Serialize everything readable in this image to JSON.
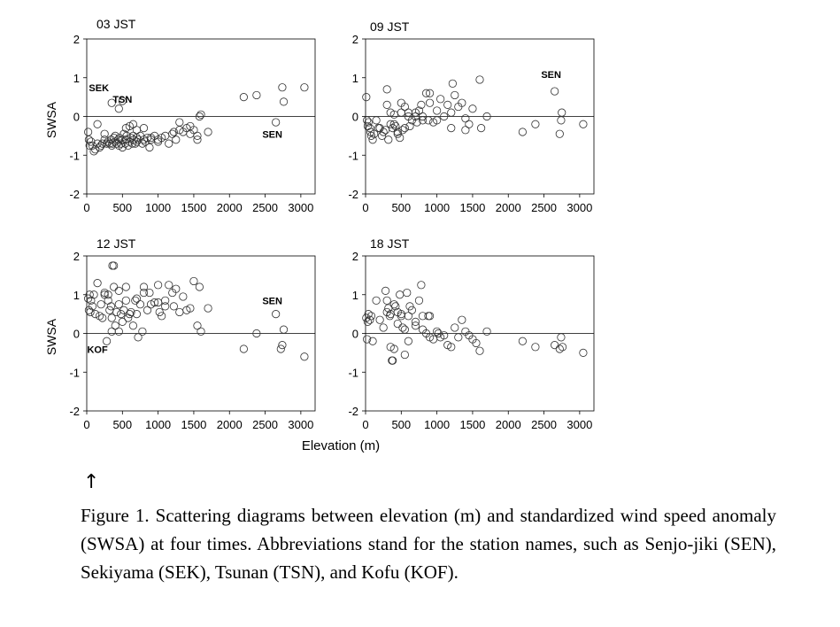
{
  "figure": {
    "arrow": "↑",
    "caption": "Figure 1. Scattering diagrams between elevation (m) and standardized wind speed anomaly (SWSA) at four times. Abbreviations stand for the station names, such as Senjo-jiki (SEN), Sekiyama (SEK), Tsunan (TSN), and Kofu (KOF).",
    "xlabel": "Elevation (m)"
  },
  "chart_data": [
    {
      "type": "scatter",
      "title": "03  JST",
      "ylabel": "SWSA",
      "xlabel": "",
      "xlim": [
        0,
        3200
      ],
      "ylim": [
        -2,
        2
      ],
      "xticks": [
        "0",
        "500",
        "1000",
        "1500",
        "2000",
        "2500",
        "3000"
      ],
      "yticks": [
        "2",
        "1",
        "0",
        "-1",
        "-2"
      ],
      "annotations": [
        {
          "text": "SEK",
          "x": 170,
          "y": 0.65
        },
        {
          "text": "TSN",
          "x": 500,
          "y": 0.35
        },
        {
          "text": "SEN",
          "x": 2600,
          "y": -0.55
        }
      ],
      "x": [
        20,
        30,
        40,
        60,
        80,
        100,
        120,
        150,
        180,
        200,
        220,
        250,
        280,
        300,
        320,
        340,
        350,
        360,
        380,
        400,
        400,
        420,
        440,
        450,
        460,
        480,
        500,
        500,
        520,
        540,
        550,
        560,
        580,
        600,
        620,
        640,
        650,
        660,
        680,
        700,
        700,
        720,
        750,
        780,
        800,
        820,
        850,
        880,
        900,
        950,
        1000,
        1050,
        1100,
        1150,
        1200,
        1220,
        1250,
        1300,
        1350,
        1400,
        1450,
        1500,
        1550,
        1580,
        1600,
        1700,
        2200,
        2380,
        2650,
        2740,
        2760,
        3050,
        350,
        450,
        500,
        150,
        250,
        550,
        600,
        650,
        700,
        800,
        900,
        1000,
        1300,
        1450,
        1550
      ],
      "y": [
        -0.4,
        -0.6,
        -0.75,
        -0.65,
        -0.75,
        -0.9,
        -0.85,
        -0.7,
        -0.8,
        -0.75,
        -0.7,
        -0.6,
        -0.7,
        -0.65,
        -0.7,
        -0.6,
        -0.75,
        -0.7,
        -0.55,
        -0.65,
        -0.5,
        -0.7,
        -0.6,
        -0.75,
        -0.55,
        -0.7,
        -0.8,
        -0.6,
        -0.45,
        -0.7,
        -0.6,
        -0.5,
        -0.75,
        -0.65,
        -0.55,
        -0.7,
        -0.5,
        -0.6,
        -0.7,
        -0.55,
        -0.65,
        -0.6,
        -0.5,
        -0.7,
        -0.6,
        -0.65,
        -0.55,
        -0.8,
        -0.6,
        -0.5,
        -0.6,
        -0.55,
        -0.5,
        -0.7,
        -0.45,
        -0.4,
        -0.6,
        -0.35,
        -0.4,
        -0.3,
        -0.45,
        -0.35,
        -0.6,
        0.0,
        0.05,
        -0.4,
        0.5,
        0.55,
        -0.15,
        0.75,
        0.38,
        0.75,
        0.35,
        0.2,
        0.4,
        -0.2,
        -0.45,
        -0.3,
        -0.25,
        -0.2,
        -0.35,
        -0.3,
        -0.55,
        -0.65,
        -0.15,
        -0.25,
        -0.5
      ]
    },
    {
      "type": "scatter",
      "title": "09  JST",
      "ylabel": "",
      "xlabel": "",
      "xlim": [
        0,
        3200
      ],
      "ylim": [
        -2,
        2
      ],
      "xticks": [
        "0",
        "500",
        "1000",
        "1500",
        "2000",
        "2500",
        "3000"
      ],
      "yticks": [
        "2",
        "1",
        "0",
        "-1",
        "-2"
      ],
      "annotations": [
        {
          "text": "SEN",
          "x": 2600,
          "y": 1.0
        }
      ],
      "x": [
        10,
        20,
        40,
        60,
        80,
        100,
        150,
        200,
        250,
        280,
        300,
        320,
        350,
        380,
        400,
        420,
        450,
        480,
        500,
        520,
        550,
        600,
        620,
        650,
        700,
        720,
        750,
        780,
        800,
        850,
        880,
        900,
        950,
        1000,
        1050,
        1100,
        1150,
        1200,
        1220,
        1250,
        1300,
        1350,
        1400,
        1450,
        1500,
        1600,
        1620,
        1700,
        2200,
        2380,
        2650,
        2720,
        2740,
        2750,
        3050,
        300,
        400,
        500,
        550,
        600,
        700,
        800,
        900,
        1000,
        1200,
        1400,
        30,
        70,
        120,
        180,
        230,
        350,
        450
      ],
      "y": [
        0.5,
        -0.1,
        -0.15,
        -0.3,
        -0.5,
        -0.6,
        -0.1,
        -0.3,
        -0.4,
        -0.35,
        0.7,
        -0.6,
        0.1,
        -0.3,
        -0.2,
        -0.25,
        -0.45,
        -0.55,
        0.1,
        -0.35,
        -0.3,
        0.0,
        -0.25,
        -0.1,
        0.1,
        -0.15,
        0.15,
        0.3,
        0.0,
        0.6,
        -0.1,
        0.6,
        -0.15,
        -0.1,
        0.45,
        0.0,
        0.3,
        -0.3,
        0.85,
        0.55,
        0.25,
        0.35,
        -0.05,
        -0.2,
        0.2,
        0.95,
        -0.3,
        0.0,
        -0.4,
        -0.2,
        0.65,
        -0.45,
        -0.1,
        0.1,
        -0.2,
        0.3,
        0.05,
        0.35,
        0.25,
        0.1,
        0.0,
        -0.1,
        0.35,
        0.15,
        0.1,
        -0.35,
        -0.25,
        -0.4,
        -0.45,
        -0.3,
        -0.5,
        -0.2,
        -0.4
      ]
    },
    {
      "type": "scatter",
      "title": "12  JST",
      "ylabel": "SWSA",
      "xlabel": "",
      "xlim": [
        0,
        3200
      ],
      "ylim": [
        -2,
        2
      ],
      "xticks": [
        "0",
        "500",
        "1000",
        "1500",
        "2000",
        "2500",
        "3000"
      ],
      "yticks": [
        "2",
        "1",
        "0",
        "-1",
        "-2"
      ],
      "annotations": [
        {
          "text": "SEN",
          "x": 2600,
          "y": 0.75
        },
        {
          "text": "KOF",
          "x": 150,
          "y": -0.5
        }
      ],
      "x": [
        20,
        30,
        40,
        50,
        60,
        80,
        100,
        120,
        150,
        180,
        200,
        220,
        250,
        280,
        300,
        320,
        340,
        350,
        360,
        380,
        400,
        420,
        450,
        480,
        500,
        520,
        550,
        580,
        600,
        620,
        650,
        680,
        700,
        720,
        750,
        780,
        800,
        850,
        880,
        900,
        950,
        1000,
        1020,
        1050,
        1100,
        1150,
        1200,
        1220,
        1250,
        1300,
        1350,
        1400,
        1450,
        1500,
        1550,
        1580,
        1600,
        1700,
        2200,
        2380,
        2650,
        2720,
        2740,
        2760,
        3050,
        350,
        380,
        300,
        250,
        450,
        550,
        700,
        800,
        1000,
        1100,
        450
      ],
      "y": [
        0.9,
        0.6,
        1.0,
        0.55,
        0.85,
        0.7,
        1.0,
        0.5,
        1.3,
        0.45,
        0.75,
        0.4,
        1.05,
        -0.2,
        0.85,
        0.6,
        0.7,
        0.4,
        1.75,
        1.2,
        0.2,
        0.55,
        1.1,
        0.5,
        0.3,
        0.6,
        1.2,
        0.4,
        0.5,
        0.55,
        0.2,
        0.85,
        0.5,
        -0.1,
        0.75,
        0.05,
        1.2,
        0.6,
        1.05,
        0.75,
        0.8,
        1.25,
        0.55,
        0.45,
        0.85,
        1.25,
        1.05,
        0.7,
        1.15,
        0.55,
        0.95,
        0.6,
        0.65,
        1.35,
        0.2,
        1.2,
        0.05,
        0.65,
        -0.4,
        0.0,
        0.5,
        -0.4,
        -0.3,
        0.1,
        -0.6,
        0.05,
        1.75,
        1.0,
        1.0,
        0.75,
        0.85,
        0.9,
        1.05,
        0.8,
        0.7,
        0.05
      ]
    },
    {
      "type": "scatter",
      "title": "18  JST",
      "ylabel": "",
      "xlabel": "",
      "xlim": [
        0,
        3200
      ],
      "ylim": [
        -2,
        2
      ],
      "xticks": [
        "0",
        "500",
        "1000",
        "1500",
        "2000",
        "2500",
        "3000"
      ],
      "yticks": [
        "2",
        "1",
        "0",
        "-1",
        "-2"
      ],
      "annotations": [],
      "x": [
        10,
        20,
        30,
        40,
        60,
        80,
        100,
        150,
        200,
        250,
        280,
        300,
        320,
        340,
        350,
        380,
        400,
        420,
        450,
        480,
        500,
        520,
        550,
        580,
        600,
        620,
        650,
        700,
        750,
        780,
        800,
        850,
        880,
        900,
        950,
        1000,
        1020,
        1050,
        1100,
        1150,
        1200,
        1250,
        1300,
        1350,
        1400,
        1450,
        1500,
        1550,
        1600,
        1700,
        2200,
        2380,
        2650,
        2720,
        2740,
        2760,
        3050,
        350,
        370,
        300,
        400,
        450,
        500,
        550,
        600,
        700,
        800,
        900
      ],
      "y": [
        0.4,
        -0.15,
        0.3,
        0.5,
        0.35,
        0.45,
        -0.2,
        0.85,
        0.35,
        0.15,
        1.1,
        0.55,
        0.65,
        0.45,
        -0.35,
        -0.7,
        -0.4,
        0.7,
        0.25,
        1.0,
        0.45,
        0.15,
        -0.55,
        1.05,
        -0.2,
        0.7,
        0.6,
        0.3,
        0.85,
        1.25,
        0.45,
        0.0,
        0.45,
        -0.1,
        -0.15,
        0.05,
        0.0,
        -0.1,
        -0.05,
        -0.3,
        -0.35,
        0.15,
        -0.1,
        0.35,
        0.05,
        -0.05,
        -0.15,
        -0.25,
        -0.45,
        0.05,
        -0.2,
        -0.35,
        -0.3,
        -0.4,
        -0.1,
        -0.35,
        -0.5,
        0.5,
        -0.7,
        0.85,
        0.75,
        0.55,
        0.5,
        0.1,
        0.45,
        0.2,
        0.1,
        0.45
      ]
    }
  ]
}
